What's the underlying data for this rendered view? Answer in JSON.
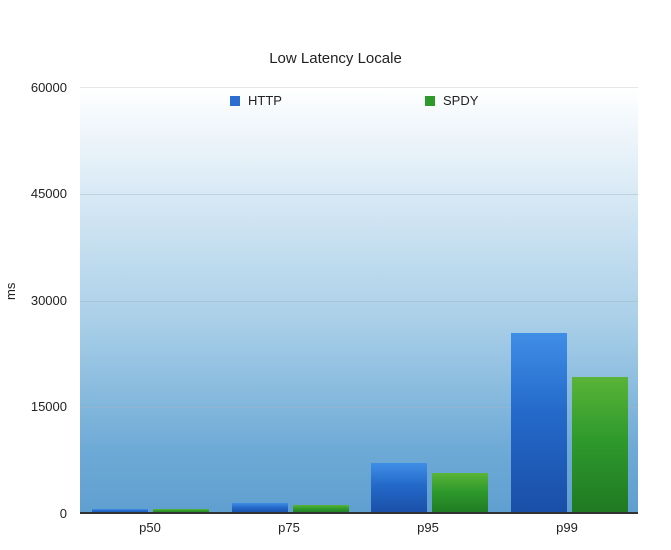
{
  "chart_data": {
    "type": "bar",
    "title": "Low Latency Locale",
    "xlabel": "",
    "ylabel": "ms",
    "categories": [
      "p50",
      "p75",
      "p95",
      "p99"
    ],
    "series": [
      {
        "name": "HTTP",
        "color": "#2a6fd0",
        "values": [
          560,
          1400,
          7000,
          25400
        ]
      },
      {
        "name": "SPDY",
        "color": "#2f9a2c",
        "values": [
          600,
          1100,
          5600,
          19200
        ]
      }
    ],
    "ylim": [
      0,
      60000
    ],
    "yticks": [
      "0",
      "15000",
      "30000",
      "45000",
      "60000"
    ],
    "grid": true,
    "legend_position": "top-inside"
  }
}
